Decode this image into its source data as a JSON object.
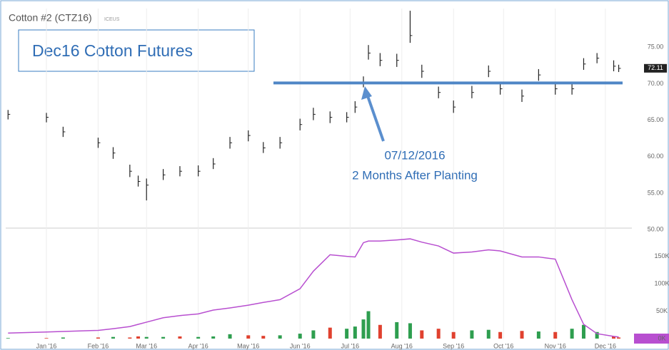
{
  "chart_data": {
    "type": "ohlc",
    "title": "Cotton #2 (CTZ16)",
    "exchange": "ICEUS",
    "annotation_box": "Dec16 Cotton Futures",
    "annotation_date": "07/12/2016",
    "annotation_note": "2 Months After Planting",
    "support_line": 70.1,
    "last_price": 72.11,
    "x": [
      -23,
      0,
      10,
      31,
      40,
      50,
      55,
      60,
      70,
      80,
      91,
      100,
      110,
      121,
      130,
      140,
      152,
      160,
      170,
      180,
      185,
      190,
      193,
      200,
      210,
      218,
      225,
      235,
      244,
      255,
      265,
      272,
      285,
      295,
      305,
      315,
      322,
      330,
      340,
      343
    ],
    "xlim": [
      -24.4,
      350.9
    ],
    "xticks": [
      {
        "value": 0,
        "label": "Jan '16"
      },
      {
        "value": 31,
        "label": "Feb '16"
      },
      {
        "value": 60,
        "label": "Mar '16"
      },
      {
        "value": 91,
        "label": "Apr '16"
      },
      {
        "value": 121,
        "label": "May '16"
      },
      {
        "value": 152,
        "label": "Jun '16"
      },
      {
        "value": 182,
        "label": "Jul '16"
      },
      {
        "value": 213,
        "label": "Aug '16"
      },
      {
        "value": 244,
        "label": "Sep '16"
      },
      {
        "value": 274,
        "label": "Oct '16"
      },
      {
        "value": 305,
        "label": "Nov '16"
      },
      {
        "value": 335,
        "label": "Dec '16"
      }
    ],
    "close": [
      65.8,
      65.4,
      63.4,
      61.9,
      60.5,
      58.0,
      56.6,
      56.1,
      57.5,
      58.0,
      58.0,
      59.0,
      61.9,
      62.9,
      61.2,
      61.9,
      64.4,
      65.8,
      65.4,
      65.4,
      66.8,
      70.2,
      74.2,
      73.2,
      73.2,
      76.6,
      71.7,
      68.8,
      66.8,
      68.8,
      71.7,
      69.3,
      68.3,
      71.2,
      69.3,
      69.3,
      72.7,
      73.5,
      72.4,
      72.1
    ],
    "high": [
      66.4,
      66.0,
      64.1,
      62.6,
      61.3,
      58.9,
      57.4,
      57.0,
      58.3,
      58.7,
      58.8,
      59.8,
      62.7,
      63.6,
      62.0,
      62.7,
      65.2,
      66.7,
      66.2,
      66.1,
      67.6,
      71.0,
      75.3,
      74.2,
      74.1,
      80.0,
      72.6,
      69.6,
      67.7,
      69.7,
      72.5,
      70.1,
      69.2,
      72.0,
      70.1,
      70.2,
      73.5,
      74.2,
      73.2,
      72.6
    ],
    "low": [
      65.1,
      64.7,
      62.7,
      61.2,
      59.7,
      57.2,
      55.9,
      54.0,
      56.8,
      57.3,
      57.3,
      58.3,
      61.1,
      62.1,
      60.5,
      61.1,
      63.6,
      65.0,
      64.6,
      64.7,
      66.0,
      69.5,
      73.3,
      72.4,
      72.3,
      75.6,
      70.8,
      68.0,
      66.0,
      68.0,
      70.9,
      68.5,
      67.5,
      70.4,
      68.5,
      68.5,
      71.9,
      72.8,
      71.7,
      71.6
    ],
    "price_color": "#222222",
    "ylim": [
      50.4,
      80.3
    ],
    "yticks": [
      {
        "value": 50,
        "label": "50.00"
      },
      {
        "value": 55,
        "label": "55.00"
      },
      {
        "value": 60,
        "label": "60.00"
      },
      {
        "value": 65,
        "label": "65.00"
      },
      {
        "value": 70,
        "label": "70.00"
      },
      {
        "value": 75,
        "label": "75.00"
      }
    ],
    "volume": [
      1,
      1,
      2,
      2,
      3,
      2,
      4,
      3,
      3,
      4,
      3,
      4,
      8,
      6,
      5,
      6,
      9,
      15,
      20,
      18,
      22,
      35,
      50,
      25,
      30,
      28,
      15,
      18,
      12,
      15,
      16,
      12,
      14,
      13,
      12,
      18,
      25,
      12,
      4,
      2
    ],
    "volume_colors": [
      "#2e9e4f",
      "#e0412f",
      "#2e9e4f",
      "#e0412f",
      "#2e9e4f",
      "#e0412f",
      "#e0412f",
      "#2e9e4f",
      "#2e9e4f",
      "#e0412f",
      "#2e9e4f",
      "#2e9e4f",
      "#2e9e4f",
      "#e0412f",
      "#e0412f",
      "#2e9e4f",
      "#2e9e4f",
      "#2e9e4f",
      "#e0412f",
      "#2e9e4f",
      "#2e9e4f",
      "#2e9e4f",
      "#2e9e4f",
      "#e0412f",
      "#2e9e4f",
      "#2e9e4f",
      "#e0412f",
      "#e0412f",
      "#e0412f",
      "#2e9e4f",
      "#2e9e4f",
      "#e0412f",
      "#e0412f",
      "#2e9e4f",
      "#e0412f",
      "#2e9e4f",
      "#2e9e4f",
      "#2e9e4f",
      "#e0412f",
      "#e0412f"
    ],
    "open_interest": [
      10,
      12,
      13,
      15,
      18,
      22,
      26,
      30,
      38,
      42,
      45,
      52,
      56,
      61,
      66,
      71,
      91,
      123,
      153,
      150,
      149,
      175,
      178,
      178,
      180,
      182,
      176,
      169,
      156,
      158,
      162,
      160,
      149,
      149,
      145,
      71,
      26,
      9,
      4,
      3
    ],
    "oi_color": "#b84fd0",
    "y2lim": [
      0,
      199
    ],
    "y2ticks": [
      {
        "value": 0,
        "label": "0K"
      },
      {
        "value": 50,
        "label": "50K"
      },
      {
        "value": 100,
        "label": "100K"
      },
      {
        "value": 150,
        "label": "150K"
      }
    ]
  }
}
